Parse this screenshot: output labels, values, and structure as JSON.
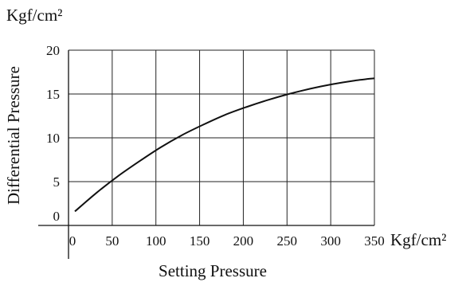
{
  "chart_data": {
    "type": "line",
    "title": "",
    "xlabel": "Setting Pressure",
    "ylabel": "Differential Pressure",
    "x_unit": "Kgf/cm²",
    "y_unit": "Kgf/cm²",
    "xlim": [
      0,
      350
    ],
    "ylim": [
      0,
      20
    ],
    "x_ticks": [
      "50",
      "100",
      "150",
      "200",
      "250",
      "300",
      "350"
    ],
    "x_tick_zero": "0",
    "y_ticks": [
      "0",
      "5",
      "10",
      "15",
      "20"
    ],
    "grid": true,
    "series": [
      {
        "x": [
          0,
          25,
          50,
          75,
          100,
          125,
          150,
          175,
          200,
          225,
          250,
          275,
          300,
          325,
          350
        ],
        "y": [
          1.6,
          3.7,
          5.6,
          7.3,
          8.9,
          10.3,
          11.5,
          12.6,
          13.5,
          14.3,
          15.0,
          15.6,
          16.1,
          16.5,
          16.8
        ]
      }
    ],
    "colors": {
      "line": "#111111",
      "grid": "#222222"
    }
  }
}
